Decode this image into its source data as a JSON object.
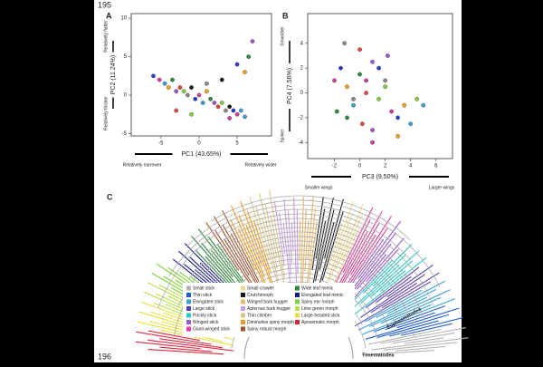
{
  "line_numbers": [
    "195",
    "196"
  ],
  "chart_data": [
    {
      "type": "scatter",
      "panel": "A",
      "x_label": "PC1 (43.65%)",
      "y_label": "PC2 (11.24%)",
      "x_annotations": [
        "Relatively narrower",
        "Relatively wider"
      ],
      "y_annotations": [
        "Relatively flatter",
        "Relatively thicker"
      ],
      "xlim": [
        -8.9,
        9.5
      ],
      "ylim": [
        -5.3,
        10.6
      ],
      "xticks": [
        -5,
        0,
        5
      ],
      "yticks": [
        -5,
        0,
        5,
        10
      ],
      "colors": [
        "#2b3fc4",
        "#d23fa3",
        "#3aa0d8",
        "#f2a21d",
        "#2e8b3a",
        "#9b59d0",
        "#e0483c",
        "#7fd13b",
        "#8a8a8a",
        "#1a1a1a"
      ],
      "series": [
        {
          "x": [
            -6,
            -5.2,
            -4.5,
            -4,
            -3.5,
            -3,
            -2.5,
            -2,
            -1.5,
            -1,
            -0.5,
            0,
            0.5,
            1,
            1.5,
            2,
            2.5,
            3,
            3.5,
            4,
            4.5,
            5,
            5.5,
            6,
            6.5,
            7,
            -3,
            -1,
            1,
            3,
            5,
            4,
            6
          ],
          "y": [
            2.5,
            2,
            1.5,
            1,
            2,
            0.5,
            1,
            0.5,
            0,
            1,
            -0.5,
            0,
            -1,
            0.5,
            -0.5,
            -1,
            -1.5,
            -1,
            -2,
            -1.5,
            -2,
            -2.5,
            -2,
            3,
            5,
            7,
            -2,
            -2.5,
            1.5,
            2,
            4,
            -3,
            -2.8
          ]
        }
      ]
    },
    {
      "type": "scatter",
      "panel": "B",
      "x_label": "PC3 (9.50%)",
      "y_label": "PC4 (7.56%)",
      "x_annotations": [
        "Smaller wings",
        "Larger wings"
      ],
      "y_annotations": [
        "Smoother",
        "Spikier"
      ],
      "xlim": [
        -4.1,
        7.3
      ],
      "ylim": [
        -5.3,
        6.4
      ],
      "xticks": [
        -2,
        0,
        2,
        4,
        6
      ],
      "yticks": [
        -4,
        -2,
        0,
        2,
        4
      ],
      "colors": [
        "#d23fa3",
        "#2b3fc4",
        "#f2a21d",
        "#3aa0d8",
        "#2e8b3a",
        "#e0483c",
        "#9b59d0",
        "#7fd13b",
        "#8a8a8a"
      ],
      "series": [
        {
          "x": [
            -2,
            -1.5,
            -1,
            -0.5,
            0,
            0.5,
            1,
            1.5,
            2,
            2.5,
            3,
            3.5,
            4,
            -1,
            0,
            1,
            2,
            -0.5,
            0.5,
            1.5,
            3,
            5,
            -1.8,
            0.2,
            2.2,
            4.5,
            -1.2,
            1
          ],
          "y": [
            1,
            2,
            0.5,
            -1,
            1.5,
            0,
            2.5,
            -0.5,
            1,
            -1.5,
            -2,
            -1,
            -2.5,
            -2,
            3.5,
            -3,
            0.5,
            -0.5,
            1,
            2,
            -3.5,
            -1,
            -1.5,
            -2.5,
            3,
            -0.5,
            4,
            -4
          ]
        }
      ]
    }
  ],
  "panel_c": {
    "panel": "C",
    "legend": [
      {
        "label": "Small stick",
        "color": "#b5b5b5"
      },
      {
        "label": "Thin stick",
        "color": "#1f5fd1"
      },
      {
        "label": "Elongated stick",
        "color": "#3aa0d8"
      },
      {
        "label": "Large stick",
        "color": "#5b3fb5"
      },
      {
        "label": "Prickly stick",
        "color": "#2bc9c9"
      },
      {
        "label": "Winged stick",
        "color": "#9b59d0"
      },
      {
        "label": "Giant-winged stick",
        "color": "#e0409a"
      },
      {
        "label": "Small crawler",
        "color": "#f0d890"
      },
      {
        "label": "Crutchmorph",
        "color": "#1a1a1a"
      },
      {
        "label": "Winged bark hugger",
        "color": "#e8b86a"
      },
      {
        "label": "Apterous bark hugger",
        "color": "#c9a0e0"
      },
      {
        "label": "Thin climber",
        "color": "#d8c890"
      },
      {
        "label": "Diminutive spiny morph",
        "color": "#f29a1d"
      },
      {
        "label": "Spiny robust morph",
        "color": "#a0522d"
      },
      {
        "label": "Wide leaf mimic",
        "color": "#2e8b3a"
      },
      {
        "label": "Elongated leaf mimic",
        "color": "#1c1c8c"
      },
      {
        "label": "Spiny ear morph",
        "color": "#7fd13b"
      },
      {
        "label": "Lime green morph",
        "color": "#b8e04a"
      },
      {
        "label": "Large-headed stick",
        "color": "#e8e040"
      },
      {
        "label": "Aposematic morph",
        "color": "#e0283c"
      }
    ],
    "clade_labels": [
      "Euphasmatodea",
      "Timematodea"
    ]
  }
}
